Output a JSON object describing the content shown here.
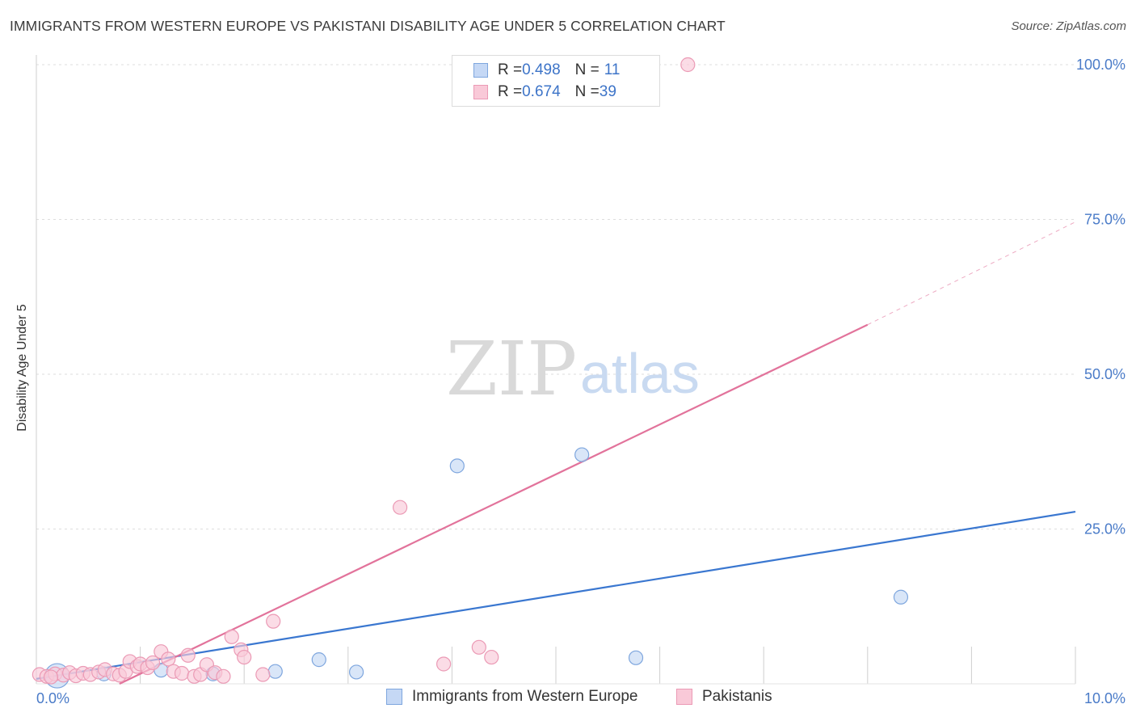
{
  "title": "IMMIGRANTS FROM WESTERN EUROPE VS PAKISTANI DISABILITY AGE UNDER 5 CORRELATION CHART",
  "source": "Source: ZipAtlas.com",
  "watermark": {
    "zip": "ZIP",
    "atlas": "atlas"
  },
  "colors": {
    "blue_fill": "#c5d8f5",
    "blue_stroke": "#7ea6de",
    "blue_line": "#3a77d0",
    "pink_fill": "#f9c9d8",
    "pink_stroke": "#eb9ab5",
    "pink_line": "#e2739b",
    "grid": "#dedede",
    "tick_text": "#4a7bc8"
  },
  "legend": {
    "rows": [
      {
        "r_label": "R = ",
        "r_value": "0.498",
        "n_label": "N = ",
        "n_value": "11"
      },
      {
        "r_label": "R = ",
        "r_value": "0.674",
        "n_label": "N = ",
        "n_value": "39"
      }
    ]
  },
  "chart_data": {
    "type": "scatter",
    "title": "IMMIGRANTS FROM WESTERN EUROPE VS PAKISTANI DISABILITY AGE UNDER 5 CORRELATION CHART",
    "xlabel": "",
    "ylabel": "Disability Age Under 5",
    "xlim": [
      0,
      10
    ],
    "ylim": [
      0,
      100
    ],
    "x_tick_labels": [
      {
        "value": 0,
        "label": "0.0%"
      },
      {
        "value": 10,
        "label": "10.0%"
      }
    ],
    "y_tick_labels": [
      {
        "value": 25,
        "label": "25.0%"
      },
      {
        "value": 50,
        "label": "50.0%"
      },
      {
        "value": 75,
        "label": "75.0%"
      },
      {
        "value": 100,
        "label": "100.0%"
      }
    ],
    "series": [
      {
        "name": "Immigrants from Western Europe",
        "color": "blue",
        "points": [
          {
            "x": 0.2,
            "y": 1.3,
            "big": true
          },
          {
            "x": 0.65,
            "y": 1.6
          },
          {
            "x": 1.2,
            "y": 2.2
          },
          {
            "x": 1.7,
            "y": 1.6
          },
          {
            "x": 2.3,
            "y": 2.0
          },
          {
            "x": 2.72,
            "y": 3.9
          },
          {
            "x": 3.08,
            "y": 1.9
          },
          {
            "x": 4.05,
            "y": 35.2
          },
          {
            "x": 5.25,
            "y": 37.0
          },
          {
            "x": 5.77,
            "y": 4.2
          },
          {
            "x": 8.32,
            "y": 14.0
          }
        ],
        "trend": {
          "x0": 0.0,
          "y0": 0.8,
          "x1": 10.0,
          "y1": 27.8
        }
      },
      {
        "name": "Pakistanis",
        "color": "pink",
        "points": [
          {
            "x": 0.03,
            "y": 1.5
          },
          {
            "x": 0.1,
            "y": 1.2
          },
          {
            "x": 0.18,
            "y": 1.6
          },
          {
            "x": 0.26,
            "y": 1.4
          },
          {
            "x": 0.32,
            "y": 1.8
          },
          {
            "x": 0.38,
            "y": 1.3
          },
          {
            "x": 0.45,
            "y": 1.7
          },
          {
            "x": 0.52,
            "y": 1.5
          },
          {
            "x": 0.6,
            "y": 1.9
          },
          {
            "x": 0.66,
            "y": 2.3
          },
          {
            "x": 0.74,
            "y": 1.6
          },
          {
            "x": 0.8,
            "y": 1.4
          },
          {
            "x": 0.86,
            "y": 2.0
          },
          {
            "x": 0.9,
            "y": 3.6
          },
          {
            "x": 0.97,
            "y": 2.8
          },
          {
            "x": 1.0,
            "y": 3.2
          },
          {
            "x": 1.07,
            "y": 2.6
          },
          {
            "x": 1.12,
            "y": 3.4
          },
          {
            "x": 1.2,
            "y": 5.2
          },
          {
            "x": 1.27,
            "y": 4.0
          },
          {
            "x": 1.32,
            "y": 2.0
          },
          {
            "x": 1.4,
            "y": 1.7
          },
          {
            "x": 1.46,
            "y": 4.6
          },
          {
            "x": 1.52,
            "y": 1.2
          },
          {
            "x": 1.58,
            "y": 1.5
          },
          {
            "x": 1.64,
            "y": 3.1
          },
          {
            "x": 1.72,
            "y": 1.8
          },
          {
            "x": 1.8,
            "y": 1.2
          },
          {
            "x": 1.88,
            "y": 7.6
          },
          {
            "x": 1.97,
            "y": 5.5
          },
          {
            "x": 2.0,
            "y": 4.3
          },
          {
            "x": 2.18,
            "y": 1.5
          },
          {
            "x": 2.28,
            "y": 10.1
          },
          {
            "x": 3.5,
            "y": 28.5
          },
          {
            "x": 3.92,
            "y": 3.2
          },
          {
            "x": 4.26,
            "y": 5.9
          },
          {
            "x": 4.38,
            "y": 4.3
          },
          {
            "x": 6.27,
            "y": 100.0
          },
          {
            "x": 0.14,
            "y": 1.1
          }
        ],
        "trend": {
          "x0": 0.8,
          "y0": 0.0,
          "x1": 8.0,
          "y1": 58.0
        },
        "trend_dashed": {
          "x0": 8.0,
          "y0": 58.0,
          "x1": 10.0,
          "y1": 74.6
        }
      }
    ],
    "legend_position": "top-center",
    "grid": true
  }
}
